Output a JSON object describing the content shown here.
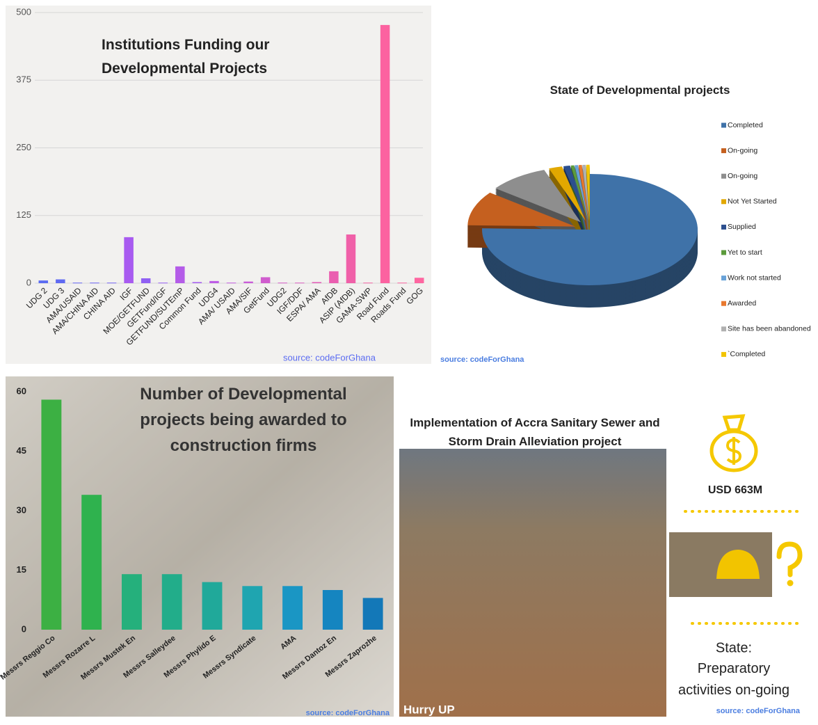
{
  "chart_data": [
    {
      "type": "bar",
      "title": "Institutions Funding our Developmental Projects",
      "source": "source: codeForGhana",
      "categories": [
        "UDG 2",
        "UDG 3",
        "AMA/USAID",
        "AMA/CHINA AID",
        "CHINA AID",
        "IGF",
        "MOE/GETFUND",
        "GETFund/IGF",
        "GETFUND/SUTEmP",
        "Common Fund",
        "UDG4",
        "AMA/ USAID",
        "AMA/SIF",
        "GetFund",
        "UDG2",
        "IGF/DDF",
        "ESPA/ AMA",
        "AfDB",
        "ASIP (AfDB)",
        "GAMA-SWP",
        "Road Fund",
        "Roads Fund",
        "GOG"
      ],
      "values": [
        5,
        7,
        1,
        1,
        1,
        85,
        9,
        1,
        31,
        2,
        4,
        1,
        3,
        11,
        1,
        1,
        2,
        22,
        90,
        1,
        477,
        1,
        10
      ],
      "colors": [
        "#5b6cf2",
        "#5f6af2",
        "#6668f3",
        "#6d66f3",
        "#7464f4",
        "#a85bf0",
        "#9060f3",
        "#9860f3",
        "#b45ce8",
        "#a55ef0",
        "#bd5ce5",
        "#c25ce0",
        "#c95cd8",
        "#d05cce",
        "#d65cc8",
        "#dc5dc0",
        "#e25eb8",
        "#ea5eb0",
        "#f060a8",
        "#f461a4",
        "#fc62a0",
        "#fd64a0",
        "#fe66a0"
      ],
      "ylim": [
        0,
        500
      ],
      "yticks": [
        0,
        125,
        250,
        375,
        500
      ],
      "grid": true
    },
    {
      "type": "pie",
      "title": "State of Developmental projects",
      "source": "source: codeForGhana",
      "categories": [
        "Completed",
        "On-going",
        "On-going",
        "Not Yet Started",
        "Supplied",
        "Yet to start",
        "Work not started",
        "Awarded",
        "Site has been abandoned",
        "`Completed"
      ],
      "values": [
        75,
        10,
        9,
        2,
        1,
        0.5,
        0.5,
        0.5,
        0.5,
        0.5
      ],
      "colors": [
        "#3f72a8",
        "#c5601f",
        "#8e8e8e",
        "#e2a800",
        "#2c4f8e",
        "#5c9b3c",
        "#69a2d8",
        "#e8782e",
        "#b0b0b0",
        "#f2c400"
      ],
      "legend": "right"
    },
    {
      "type": "bar",
      "title": "Number of Developmental projects being awarded to construction firms",
      "source": "source: codeForGhana",
      "categories": [
        "Messrs Reggio Co",
        "Messrs Rozarre L",
        "Messrs Mustek En",
        "Messrs Salleydee",
        "Messrs Phylido E",
        "Messrs Syndicate",
        "AMA",
        "Messrs Dantoz En",
        "Messrs Zaprozhe"
      ],
      "values": [
        58,
        34,
        14,
        14,
        12,
        11,
        11,
        10,
        8
      ],
      "colors": [
        "#3cb043",
        "#2fb24e",
        "#25b07c",
        "#22ad8a",
        "#20a99a",
        "#1fa5b0",
        "#1a96c4",
        "#1585c0",
        "#1378b8"
      ],
      "ylim": [
        0,
        60
      ],
      "yticks": [
        0,
        15,
        30,
        45,
        60
      ],
      "grid": false
    }
  ],
  "infographic": {
    "title": "Implementation of Accra Sanitary Sewer and Storm Drain Alleviation project",
    "amount": "USD 663M",
    "state_label": "State:",
    "state": "Preparatory activities on-going",
    "caption": "Hurry UP",
    "source": "source: codeForGhana"
  }
}
